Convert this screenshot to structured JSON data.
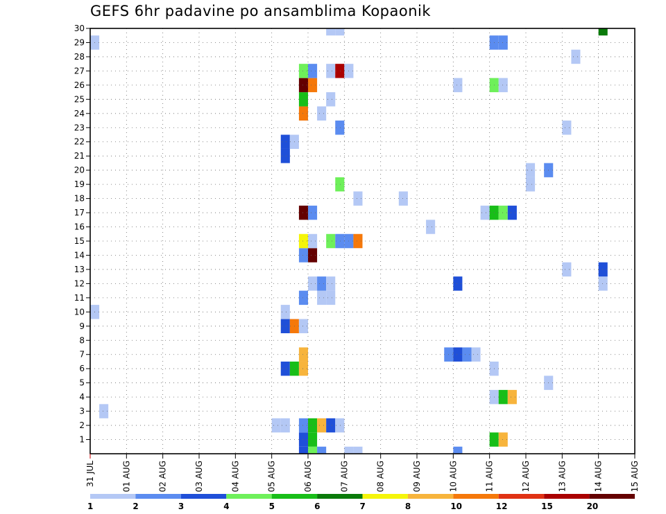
{
  "title": "GEFS 6hr padavine po ansamblima Kopaonik",
  "chart_data": {
    "type": "heatmap",
    "title": "GEFS 6hr padavine po ansamblima Kopaonik",
    "xlabel": "",
    "ylabel": "",
    "x_tick_labels": [
      "31 JUL",
      "01 AUG",
      "02 AUG",
      "03 AUG",
      "04 AUG",
      "05 AUG",
      "06 AUG",
      "07 AUG",
      "08 AUG",
      "09 AUG",
      "10 AUG",
      "11 AUG",
      "12 AUG",
      "13 AUG",
      "14 AUG",
      "15 AUG"
    ],
    "y_tick_labels": [
      "1",
      "2",
      "3",
      "4",
      "5",
      "6",
      "7",
      "8",
      "9",
      "10",
      "11",
      "12",
      "13",
      "14",
      "15",
      "16",
      "17",
      "18",
      "19",
      "20",
      "21",
      "22",
      "23",
      "24",
      "25",
      "26",
      "27",
      "28",
      "29",
      "30"
    ],
    "y_range": [
      0,
      30
    ],
    "x_range_days": [
      0,
      15
    ],
    "grid": true,
    "legend_position": "bottom",
    "colorbar": {
      "labels": [
        "1",
        "2",
        "3",
        "4",
        "5",
        "6",
        "7",
        "8",
        "10",
        "12",
        "15",
        "20"
      ],
      "colors": [
        "#b4c8f5",
        "#5b8cf0",
        "#1f4fd8",
        "#6ef05a",
        "#18be18",
        "#0a7a0a",
        "#f5f50a",
        "#f7b43c",
        "#f5780a",
        "#e03214",
        "#aa0000",
        "#640000"
      ]
    },
    "cells": [
      {
        "member": 0,
        "day": 5.75,
        "level": 3
      },
      {
        "member": 0,
        "day": 6.0,
        "level": 4
      },
      {
        "member": 0,
        "day": 6.25,
        "level": 2
      },
      {
        "member": 0,
        "day": 7.0,
        "level": 1
      },
      {
        "member": 0,
        "day": 7.25,
        "level": 1
      },
      {
        "member": 0,
        "day": 10.0,
        "level": 2
      },
      {
        "member": 1,
        "day": 5.75,
        "level": 3
      },
      {
        "member": 1,
        "day": 6.0,
        "level": 5
      },
      {
        "member": 1,
        "day": 11.0,
        "level": 5
      },
      {
        "member": 1,
        "day": 11.25,
        "level": 8
      },
      {
        "member": 2,
        "day": 5.0,
        "level": 1
      },
      {
        "member": 2,
        "day": 5.25,
        "level": 1
      },
      {
        "member": 2,
        "day": 5.75,
        "level": 2
      },
      {
        "member": 2,
        "day": 6.0,
        "level": 5
      },
      {
        "member": 2,
        "day": 6.25,
        "level": 8
      },
      {
        "member": 2,
        "day": 6.5,
        "level": 3
      },
      {
        "member": 2,
        "day": 6.75,
        "level": 1
      },
      {
        "member": 3,
        "day": 0.25,
        "level": 1
      },
      {
        "member": 4,
        "day": 11.0,
        "level": 1
      },
      {
        "member": 4,
        "day": 11.25,
        "level": 5
      },
      {
        "member": 4,
        "day": 11.5,
        "level": 8
      },
      {
        "member": 5,
        "day": 12.5,
        "level": 1
      },
      {
        "member": 6,
        "day": 5.25,
        "level": 3
      },
      {
        "member": 6,
        "day": 5.5,
        "level": 5
      },
      {
        "member": 6,
        "day": 5.75,
        "level": 8
      },
      {
        "member": 6,
        "day": 11.0,
        "level": 1
      },
      {
        "member": 7,
        "day": 5.75,
        "level": 8
      },
      {
        "member": 7,
        "day": 9.75,
        "level": 2
      },
      {
        "member": 7,
        "day": 10.0,
        "level": 3
      },
      {
        "member": 7,
        "day": 10.25,
        "level": 2
      },
      {
        "member": 7,
        "day": 10.5,
        "level": 1
      },
      {
        "member": 9,
        "day": 5.25,
        "level": 3
      },
      {
        "member": 9,
        "day": 5.5,
        "level": 9
      },
      {
        "member": 9,
        "day": 5.75,
        "level": 1
      },
      {
        "member": 10,
        "day": 0.0,
        "level": 1
      },
      {
        "member": 10,
        "day": 5.25,
        "level": 1
      },
      {
        "member": 11,
        "day": 5.75,
        "level": 2
      },
      {
        "member": 11,
        "day": 6.25,
        "level": 1
      },
      {
        "member": 11,
        "day": 6.5,
        "level": 1
      },
      {
        "member": 12,
        "day": 6.0,
        "level": 1
      },
      {
        "member": 12,
        "day": 6.25,
        "level": 2
      },
      {
        "member": 12,
        "day": 6.5,
        "level": 1
      },
      {
        "member": 12,
        "day": 10.0,
        "level": 3
      },
      {
        "member": 12,
        "day": 14.0,
        "level": 1
      },
      {
        "member": 13,
        "day": 13.0,
        "level": 1
      },
      {
        "member": 13,
        "day": 14.0,
        "level": 3
      },
      {
        "member": 14,
        "day": 5.75,
        "level": 2
      },
      {
        "member": 14,
        "day": 6.0,
        "level": 12
      },
      {
        "member": 15,
        "day": 5.75,
        "level": 7
      },
      {
        "member": 15,
        "day": 6.0,
        "level": 1
      },
      {
        "member": 15,
        "day": 6.5,
        "level": 4
      },
      {
        "member": 15,
        "day": 6.75,
        "level": 2
      },
      {
        "member": 15,
        "day": 7.0,
        "level": 2
      },
      {
        "member": 15,
        "day": 7.25,
        "level": 9
      },
      {
        "member": 16,
        "day": 9.25,
        "level": 1
      },
      {
        "member": 17,
        "day": 5.75,
        "level": 12
      },
      {
        "member": 17,
        "day": 6.0,
        "level": 2
      },
      {
        "member": 17,
        "day": 10.75,
        "level": 1
      },
      {
        "member": 17,
        "day": 11.0,
        "level": 5
      },
      {
        "member": 17,
        "day": 11.25,
        "level": 4
      },
      {
        "member": 17,
        "day": 11.5,
        "level": 3
      },
      {
        "member": 18,
        "day": 7.25,
        "level": 1
      },
      {
        "member": 18,
        "day": 8.5,
        "level": 1
      },
      {
        "member": 19,
        "day": 6.75,
        "level": 4
      },
      {
        "member": 19,
        "day": 12.0,
        "level": 1
      },
      {
        "member": 20,
        "day": 12.0,
        "level": 1
      },
      {
        "member": 20,
        "day": 12.5,
        "level": 2
      },
      {
        "member": 21,
        "day": 5.25,
        "level": 3
      },
      {
        "member": 22,
        "day": 5.25,
        "level": 3
      },
      {
        "member": 22,
        "day": 5.5,
        "level": 1
      },
      {
        "member": 23,
        "day": 6.75,
        "level": 2
      },
      {
        "member": 23,
        "day": 13.0,
        "level": 1
      },
      {
        "member": 24,
        "day": 5.75,
        "level": 9
      },
      {
        "member": 24,
        "day": 6.25,
        "level": 1
      },
      {
        "member": 25,
        "day": 5.75,
        "level": 5
      },
      {
        "member": 25,
        "day": 6.5,
        "level": 1
      },
      {
        "member": 26,
        "day": 5.75,
        "level": 12
      },
      {
        "member": 26,
        "day": 6.0,
        "level": 9
      },
      {
        "member": 26,
        "day": 10.0,
        "level": 1
      },
      {
        "member": 26,
        "day": 11.0,
        "level": 4
      },
      {
        "member": 26,
        "day": 11.25,
        "level": 1
      },
      {
        "member": 27,
        "day": 5.75,
        "level": 4
      },
      {
        "member": 27,
        "day": 6.0,
        "level": 2
      },
      {
        "member": 27,
        "day": 6.5,
        "level": 1
      },
      {
        "member": 27,
        "day": 6.75,
        "level": 11
      },
      {
        "member": 27,
        "day": 7.0,
        "level": 1
      },
      {
        "member": 28,
        "day": 13.25,
        "level": 1
      },
      {
        "member": 29,
        "day": 0.0,
        "level": 1
      },
      {
        "member": 29,
        "day": 11.0,
        "level": 2
      },
      {
        "member": 29,
        "day": 11.25,
        "level": 2
      },
      {
        "member": 30,
        "day": 6.5,
        "level": 1
      },
      {
        "member": 30,
        "day": 6.75,
        "level": 1
      },
      {
        "member": 30,
        "day": 14.0,
        "level": 6
      }
    ]
  }
}
